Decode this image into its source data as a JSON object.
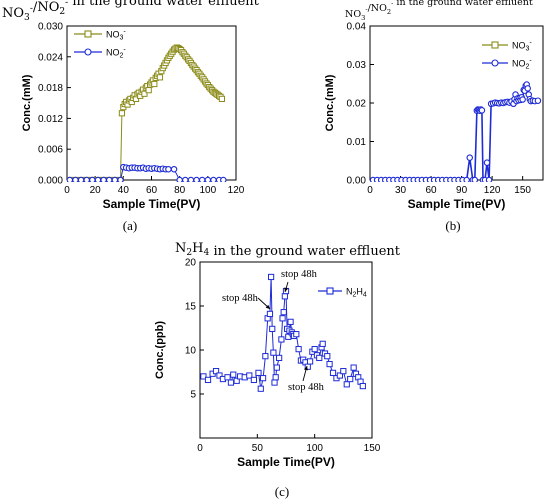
{
  "chart_data": [
    {
      "id": "a",
      "type": "scatter",
      "title": "NO3⁻/NO2⁻ in the ground water effluent",
      "xlabel": "Sample Time(PV)",
      "ylabel": "Conc.(mM)",
      "caption": "(a)",
      "xlim": [
        0,
        120
      ],
      "ylim": [
        0,
        0.03
      ],
      "xticks": [
        0,
        20,
        40,
        60,
        80,
        100,
        120
      ],
      "yticks": [
        0.0,
        0.006,
        0.012,
        0.018,
        0.024,
        0.03
      ],
      "ytick_labels": [
        "0.000",
        "0.006",
        "0.012",
        "0.018",
        "0.024",
        "0.030"
      ],
      "legend_position": "top-left",
      "series": [
        {
          "name": "NO3⁻",
          "color": "#8b8b1a",
          "marker": "square",
          "x": [
            2,
            6,
            10,
            14,
            18,
            22,
            26,
            30,
            34,
            38,
            39,
            40,
            41,
            42,
            43,
            44,
            45,
            46,
            47,
            48,
            49,
            50,
            51,
            52,
            53,
            54,
            55,
            56,
            57,
            58,
            59,
            60,
            61,
            62,
            63,
            64,
            65,
            66,
            67,
            68,
            69,
            70,
            71,
            72,
            73,
            74,
            75,
            76,
            77,
            78,
            79,
            80,
            81,
            82,
            83,
            84,
            85,
            86,
            87,
            88,
            89,
            90,
            91,
            92,
            93,
            94,
            95,
            96,
            97,
            98,
            99,
            100,
            101,
            102,
            103,
            104,
            105,
            106,
            107,
            108,
            109,
            110
          ],
          "y": [
            0,
            0,
            0,
            0,
            0,
            0,
            0,
            0,
            0,
            0,
            0.013,
            0.0142,
            0.0148,
            0.0152,
            0.0147,
            0.0155,
            0.0158,
            0.0152,
            0.016,
            0.0165,
            0.0158,
            0.0167,
            0.017,
            0.0164,
            0.0172,
            0.0176,
            0.0168,
            0.018,
            0.0183,
            0.0175,
            0.0186,
            0.019,
            0.0194,
            0.0187,
            0.0199,
            0.0203,
            0.0207,
            0.02,
            0.0212,
            0.0218,
            0.0223,
            0.0228,
            0.0233,
            0.0238,
            0.0242,
            0.0246,
            0.025,
            0.0254,
            0.0256,
            0.0258,
            0.0257,
            0.0255,
            0.0253,
            0.0249,
            0.0246,
            0.0242,
            0.0239,
            0.0235,
            0.0232,
            0.0228,
            0.0224,
            0.0221,
            0.0217,
            0.0214,
            0.021,
            0.0207,
            0.0203,
            0.02,
            0.0196,
            0.0192,
            0.0188,
            0.0185,
            0.0181,
            0.0178,
            0.0175,
            0.0172,
            0.017,
            0.0168,
            0.0166,
            0.0164,
            0.0162,
            0.0158
          ]
        },
        {
          "name": "NO2⁻",
          "color": "#1f2bd6",
          "marker": "circle",
          "x": [
            2,
            6,
            10,
            14,
            18,
            22,
            26,
            30,
            34,
            38,
            40,
            42,
            44,
            46,
            48,
            50,
            52,
            54,
            56,
            58,
            60,
            62,
            64,
            66,
            68,
            70,
            72,
            76,
            80,
            84,
            88,
            92,
            96,
            100,
            104,
            108,
            111
          ],
          "y": [
            0,
            0,
            0,
            0,
            0,
            0,
            0,
            0,
            0,
            0,
            0.0025,
            0.0024,
            0.0023,
            0.0024,
            0.0024,
            0.0023,
            0.0023,
            0.0024,
            0.0022,
            0.0023,
            0.0022,
            0.0023,
            0.0022,
            0.0021,
            0.0022,
            0.0021,
            0.0021,
            0.0021,
            0,
            0,
            0,
            0,
            0,
            0,
            0,
            0,
            0
          ]
        }
      ]
    },
    {
      "id": "b",
      "type": "line",
      "title": "NO3⁻/NO2⁻ in the ground water effluent",
      "xlabel": "Sample Time(PV)",
      "ylabel": "Conc.(mM)",
      "caption": "(b)",
      "xlim": [
        0,
        170
      ],
      "ylim": [
        0,
        0.04
      ],
      "xticks": [
        0,
        30,
        60,
        90,
        120,
        150
      ],
      "yticks": [
        0.0,
        0.01,
        0.02,
        0.03,
        0.04
      ],
      "ytick_labels": [
        "0.00",
        "0.01",
        "0.02",
        "0.03",
        "0.04"
      ],
      "legend_position": "top-right",
      "series": [
        {
          "name": "NO3⁻",
          "color": "#8b8b1a",
          "marker": "square",
          "x": [],
          "y": []
        },
        {
          "name": "NO2⁻",
          "color": "#1f2bd6",
          "marker": "circle",
          "x": [
            3,
            7,
            11,
            15,
            19,
            23,
            27,
            31,
            35,
            39,
            43,
            47,
            51,
            55,
            59,
            63,
            67,
            71,
            75,
            79,
            83,
            87,
            91,
            95,
            98,
            101,
            103,
            105,
            106,
            107,
            108,
            109,
            110,
            111,
            113,
            115,
            117,
            119,
            121,
            123,
            125,
            127,
            129,
            131,
            133,
            135,
            137,
            139,
            141,
            142,
            143,
            144,
            145,
            146,
            147,
            148,
            149,
            150,
            151,
            152,
            153,
            154,
            155,
            156,
            157,
            158,
            160,
            162,
            165
          ],
          "y": [
            0,
            0,
            0,
            0,
            0,
            0,
            0,
            0,
            0,
            0,
            0,
            0,
            0,
            0,
            0,
            0,
            0,
            0,
            0,
            0,
            0,
            0,
            0,
            0,
            0.0058,
            0,
            0,
            0.018,
            0.0183,
            0.0182,
            0.018,
            0.0183,
            0.0181,
            0,
            0,
            0.0045,
            0,
            0.0198,
            0.0199,
            0.0201,
            0.02,
            0.0199,
            0.0201,
            0.02,
            0.0202,
            0.0203,
            0.0201,
            0.0204,
            0.0198,
            0.021,
            0.0222,
            0.0205,
            0.0212,
            0.0207,
            0.0213,
            0.0208,
            0.0215,
            0.0209,
            0.0234,
            0.0232,
            0.0245,
            0.0248,
            0.0238,
            0.0222,
            0.021,
            0.0205,
            0.0206,
            0.0205,
            0.0206
          ]
        }
      ]
    },
    {
      "id": "c",
      "type": "line",
      "title": "N2H4 in the ground water effluent",
      "xlabel": "Sample Time(PV)",
      "ylabel": "Conc.(ppb)",
      "caption": "(c)",
      "xlim": [
        0,
        150
      ],
      "ylim": [
        0,
        20
      ],
      "xticks": [
        0,
        50,
        100,
        150
      ],
      "yticks": [
        5,
        10,
        15,
        20
      ],
      "ytick_labels": [
        "5",
        "10",
        "15",
        "20"
      ],
      "legend_position": "top-right",
      "annotations": [
        "stop 48h",
        "stop 48h",
        "stop 48h"
      ],
      "series": [
        {
          "name": "N2H4",
          "color": "#1f2bd6",
          "marker": "square",
          "x": [
            3,
            7,
            11,
            14,
            17,
            20,
            24,
            27,
            29,
            32,
            35,
            39,
            43,
            47,
            51,
            53,
            55,
            57,
            59,
            61,
            62,
            63,
            64,
            65,
            66,
            67,
            69,
            71,
            72,
            73,
            74,
            75,
            76,
            77,
            78,
            79,
            80,
            81,
            82,
            84,
            86,
            88,
            90,
            92,
            94,
            96,
            98,
            100,
            102,
            104,
            106,
            107,
            109,
            111,
            113,
            116,
            119,
            122,
            125,
            128,
            131,
            134,
            136,
            138,
            140,
            142
          ],
          "y": [
            7.0,
            6.6,
            7.3,
            7.6,
            7.1,
            6.7,
            6.9,
            6.3,
            7.2,
            6.5,
            7.0,
            6.9,
            7.1,
            6.6,
            7.4,
            5.6,
            6.8,
            9.3,
            13.6,
            14.1,
            18.3,
            12.4,
            9.7,
            6.3,
            6.9,
            8.0,
            9.1,
            11.2,
            13.6,
            14.3,
            16.1,
            16.7,
            12.4,
            11.5,
            12.2,
            13.2,
            12.0,
            11.8,
            11.6,
            11.8,
            10.1,
            8.8,
            8.9,
            8.6,
            8.1,
            8.7,
            9.8,
            10.1,
            9.4,
            9.1,
            10.3,
            10.7,
            9.6,
            9.3,
            8.4,
            7.4,
            6.8,
            7.1,
            7.6,
            6.1,
            6.7,
            8.0,
            7.3,
            6.9,
            6.4,
            5.9
          ]
        }
      ]
    }
  ]
}
